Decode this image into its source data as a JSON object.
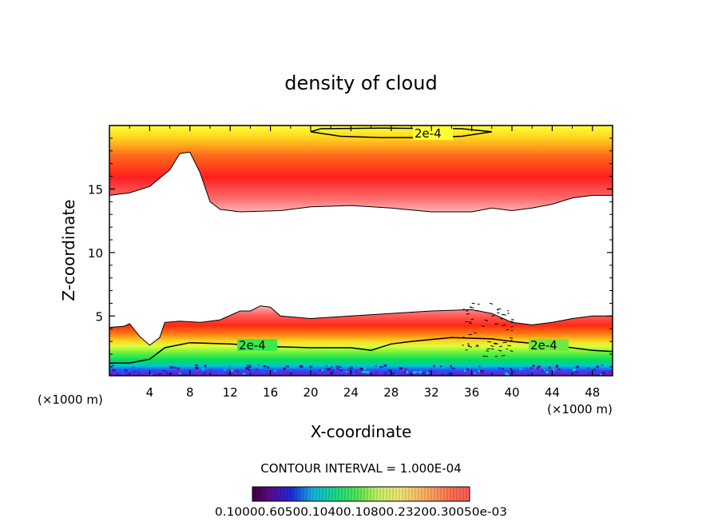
{
  "chart_data": {
    "type": "heatmap",
    "title": "density of cloud",
    "xlabel": "X-coordinate",
    "ylabel": "Z-coordinate",
    "x_unit": "(×1000 m)",
    "xlim": [
      0,
      50
    ],
    "ylim": [
      0.3,
      20
    ],
    "x_ticks": [
      4,
      8,
      12,
      16,
      20,
      24,
      28,
      32,
      36,
      40,
      44,
      48
    ],
    "y_ticks": [
      5,
      10,
      15
    ],
    "contour_interval_label": "CONTOUR INTERVAL = 1.000E-04",
    "contour_labels": [
      "2e-4",
      "2e-4",
      "2e-4"
    ],
    "colorbar": {
      "min": 0.0001,
      "max": 0.0003,
      "tick_text": "0.10000.60500.10400.10800.23200.30050e-03"
    },
    "layers": [
      {
        "name": "upper",
        "bottom": [
          [
            0,
            14.5
          ],
          [
            2,
            14.7
          ],
          [
            4,
            15.2
          ],
          [
            6,
            16.5
          ],
          [
            7,
            17.8
          ],
          [
            8,
            17.9
          ],
          [
            9,
            16.3
          ],
          [
            10,
            14
          ],
          [
            11,
            13.4
          ],
          [
            13,
            13.2
          ],
          [
            17,
            13.3
          ],
          [
            20,
            13.6
          ],
          [
            24,
            13.7
          ],
          [
            28,
            13.5
          ],
          [
            32,
            13.2
          ],
          [
            36,
            13.2
          ],
          [
            38,
            13.5
          ],
          [
            40,
            13.3
          ],
          [
            42,
            13.5
          ],
          [
            44,
            13.8
          ],
          [
            46,
            14.3
          ],
          [
            48,
            14.5
          ],
          [
            50,
            14.5
          ]
        ],
        "contour": [
          [
            20,
            19.5
          ],
          [
            23,
            19.15
          ],
          [
            27,
            19.05
          ],
          [
            31,
            19.05
          ],
          [
            35,
            19.15
          ],
          [
            38,
            19.5
          ],
          [
            35,
            19.75
          ],
          [
            27,
            19.8
          ],
          [
            21,
            19.75
          ]
        ]
      },
      {
        "name": "lower",
        "top": [
          [
            0,
            4.1
          ],
          [
            1.5,
            4.2
          ],
          [
            2,
            4.4
          ],
          [
            3,
            3.4
          ],
          [
            4,
            2.7
          ],
          [
            5,
            3.3
          ],
          [
            5.5,
            4.5
          ],
          [
            7,
            4.6
          ],
          [
            9,
            4.5
          ],
          [
            11,
            4.7
          ],
          [
            13,
            5.4
          ],
          [
            14,
            5.4
          ],
          [
            15,
            5.8
          ],
          [
            16,
            5.7
          ],
          [
            17,
            5
          ],
          [
            20,
            4.8
          ],
          [
            24,
            5
          ],
          [
            28,
            5.2
          ],
          [
            32,
            5.4
          ],
          [
            36,
            5.5
          ],
          [
            38,
            5.2
          ],
          [
            40,
            4.5
          ],
          [
            42,
            4.3
          ],
          [
            44,
            4.5
          ],
          [
            46,
            4.8
          ],
          [
            48,
            5
          ],
          [
            50,
            5
          ]
        ],
        "contour": [
          [
            0,
            1.3
          ],
          [
            2,
            1.3
          ],
          [
            4,
            1.6
          ],
          [
            5.5,
            2.5
          ],
          [
            8,
            2.9
          ],
          [
            12,
            2.8
          ],
          [
            16,
            2.6
          ],
          [
            20,
            2.5
          ],
          [
            24,
            2.5
          ],
          [
            26,
            2.3
          ],
          [
            28,
            2.8
          ],
          [
            30,
            3.0
          ],
          [
            34,
            3.3
          ],
          [
            38,
            3.2
          ],
          [
            40,
            3.0
          ],
          [
            44,
            2.7
          ],
          [
            48,
            2.3
          ],
          [
            50,
            2.2
          ]
        ]
      }
    ]
  }
}
